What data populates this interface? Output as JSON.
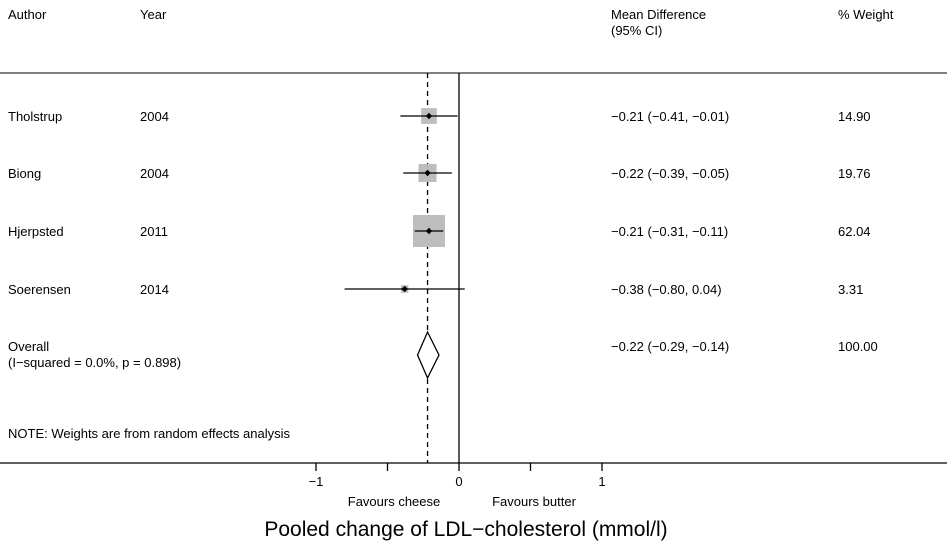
{
  "chart_data": {
    "type": "forest",
    "columns": {
      "author": "Author",
      "year": "Year",
      "effect": "Mean Difference",
      "effect_ci": "(95% CI)",
      "weight": "% Weight"
    },
    "studies": [
      {
        "author": "Tholstrup",
        "year": "2004",
        "estimate": -0.21,
        "lower": -0.41,
        "upper": -0.01,
        "effect_text": "−0.21 (−0.41, −0.01)",
        "weight": 14.9,
        "weight_text": "14.90"
      },
      {
        "author": "Biong",
        "year": "2004",
        "estimate": -0.22,
        "lower": -0.39,
        "upper": -0.05,
        "effect_text": "−0.22 (−0.39, −0.05)",
        "weight": 19.76,
        "weight_text": "19.76"
      },
      {
        "author": "Hjerpsted",
        "year": "2011",
        "estimate": -0.21,
        "lower": -0.31,
        "upper": -0.11,
        "effect_text": "−0.21 (−0.31, −0.11)",
        "weight": 62.04,
        "weight_text": "62.04"
      },
      {
        "author": "Soerensen",
        "year": "2014",
        "estimate": -0.38,
        "lower": -0.8,
        "upper": 0.04,
        "effect_text": "−0.38 (−0.80, 0.04)",
        "weight": 3.31,
        "weight_text": "3.31"
      }
    ],
    "overall": {
      "label": "Overall",
      "heterogeneity": "(I−squared = 0.0%, p = 0.898)",
      "estimate": -0.22,
      "lower": -0.29,
      "upper": -0.14,
      "effect_text": "−0.22 (−0.29, −0.14)",
      "weight_text": "100.00"
    },
    "note": "NOTE: Weights are from random effects analysis",
    "x_ticks": [
      {
        "value": -1,
        "label": "−1"
      },
      {
        "value": -0.5,
        "label": ""
      },
      {
        "value": 0,
        "label": "0"
      },
      {
        "value": 0.5,
        "label": ""
      },
      {
        "value": 1,
        "label": "1"
      }
    ],
    "xlim": [
      -1,
      1
    ],
    "favours_left": "Favours cheese",
    "favours_right": "Favours butter",
    "xlabel": "Pooled change of LDL−cholesterol (mmol/l)",
    "colors": {
      "box": "#bdbdbd",
      "line": "#000000"
    }
  }
}
